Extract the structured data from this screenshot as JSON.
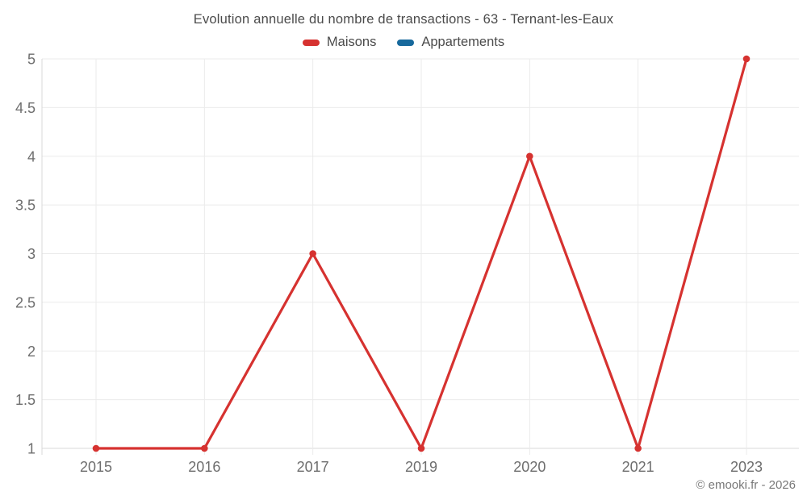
{
  "title": "Evolution annuelle du nombre de transactions - 63 - Ternant-les-Eaux",
  "legend": {
    "items": [
      {
        "label": "Maisons",
        "color": "#d63230"
      },
      {
        "label": "Appartements",
        "color": "#17699c"
      }
    ]
  },
  "footer": "© emooki.fr - 2026",
  "chart_data": {
    "type": "line",
    "title": "Evolution annuelle du nombre de transactions - 63 - Ternant-les-Eaux",
    "categories": [
      "2015",
      "2016",
      "2017",
      "2019",
      "2020",
      "2021",
      "2023"
    ],
    "series": [
      {
        "name": "Maisons",
        "color": "#d63230",
        "values": [
          1,
          1,
          3,
          1,
          4,
          1,
          5
        ]
      },
      {
        "name": "Appartements",
        "color": "#17699c",
        "values": []
      }
    ],
    "xlabel": "",
    "ylabel": "",
    "ylim": [
      1,
      5
    ],
    "yticks": [
      1,
      1.5,
      2,
      2.5,
      3,
      3.5,
      4,
      4.5,
      5
    ],
    "grid": true,
    "legend_position": "top",
    "marker": "circle",
    "grid_color": "#ebebeb",
    "axis_color": "#d8d8d8"
  }
}
